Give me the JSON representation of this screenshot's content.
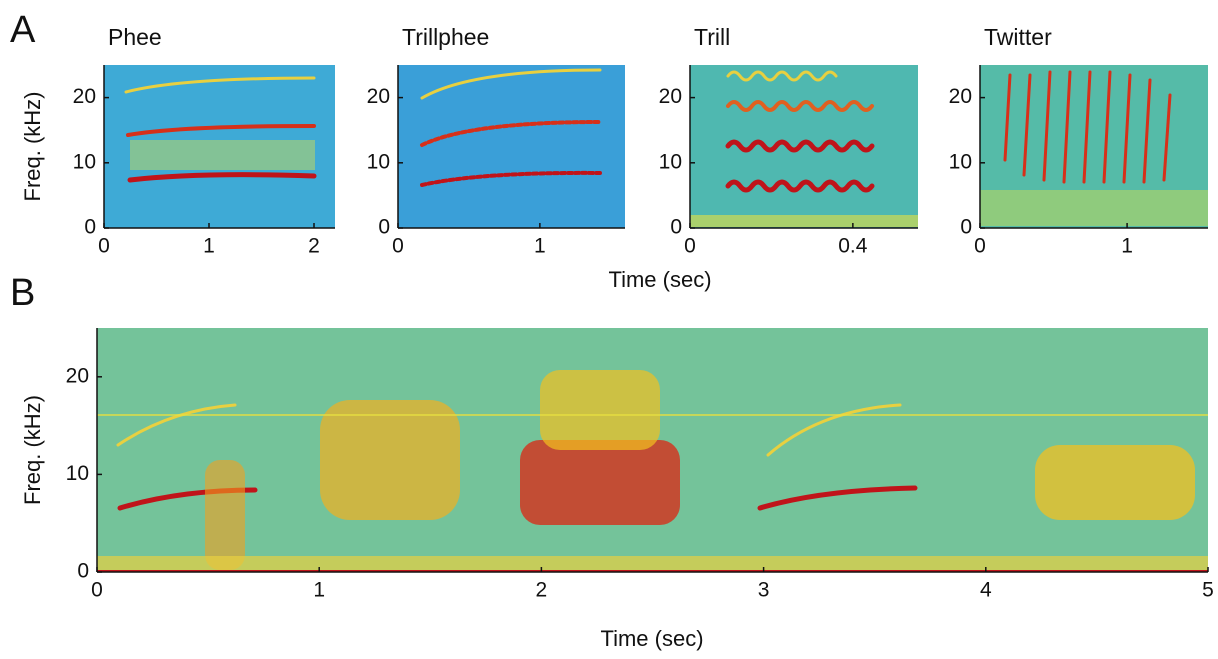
{
  "chart_data": [
    {
      "type": "spectrogram",
      "panel_label": "A",
      "title": "Phee",
      "ylabel": "Freq. (kHz)",
      "xlabel": "Time (sec)",
      "color": "#3eaad6",
      "xlim": [
        0,
        2.2
      ],
      "xticks": [
        0,
        1,
        2
      ],
      "ylim": [
        0,
        25
      ],
      "yticks": [
        0,
        10,
        20
      ]
    },
    {
      "type": "spectrogram",
      "title": "Trillphee",
      "color": "#3a9fd8",
      "xlim": [
        0,
        1.6
      ],
      "xticks": [
        0,
        1
      ],
      "ylim": [
        0,
        25
      ],
      "yticks": [
        0,
        10,
        20
      ]
    },
    {
      "type": "spectrogram",
      "title": "Trill",
      "color": "#4fb8b0",
      "xlim": [
        0,
        0.56
      ],
      "xticks": [
        0,
        0.4
      ],
      "ylim": [
        0,
        25
      ],
      "yticks": [
        0,
        10,
        20
      ]
    },
    {
      "type": "spectrogram",
      "title": "Twitter",
      "color": "#55bba8",
      "xlim": [
        0,
        1.55
      ],
      "xticks": [
        0,
        1
      ],
      "ylim": [
        0,
        25
      ],
      "yticks": [
        0,
        10,
        20
      ]
    },
    {
      "type": "spectrogram",
      "panel_label": "B",
      "ylabel": "Freq. (kHz)",
      "xlabel": "Time (sec)",
      "color": "#74c39a",
      "xlim": [
        0,
        5
      ],
      "xticks": [
        0,
        1,
        2,
        3,
        4,
        5
      ],
      "ylim": [
        0,
        25
      ],
      "yticks": [
        0,
        10,
        20
      ]
    }
  ]
}
